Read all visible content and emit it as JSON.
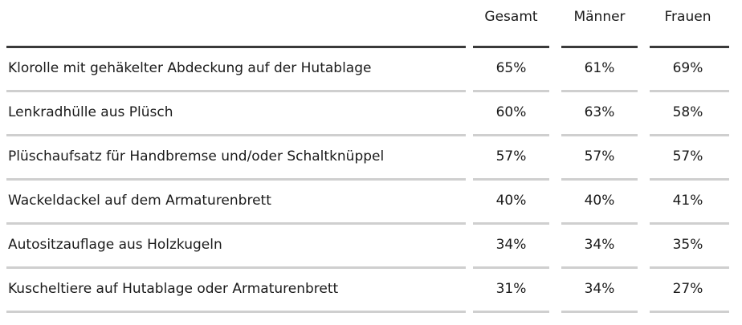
{
  "table": {
    "columns": [
      "Gesamt",
      "Männer",
      "Frauen"
    ],
    "rows": [
      {
        "label": "Klorolle mit gehäkelter Abdeckung auf der Hutablage",
        "values": [
          "65%",
          "61%",
          "69%"
        ]
      },
      {
        "label": "Lenkradhülle aus Plüsch",
        "values": [
          "60%",
          "63%",
          "58%"
        ]
      },
      {
        "label": "Plüschaufsatz für Handbremse und/oder Schaltknüppel",
        "values": [
          "57%",
          "57%",
          "57%"
        ]
      },
      {
        "label": "Wackeldackel auf dem Armaturenbrett",
        "values": [
          "40%",
          "40%",
          "41%"
        ]
      },
      {
        "label": "Autositzauflage aus Holzkugeln",
        "values": [
          "34%",
          "34%",
          "35%"
        ]
      },
      {
        "label": "Kuscheltiere auf Hutablage oder Armaturenbrett",
        "values": [
          "31%",
          "34%",
          "27%"
        ]
      }
    ]
  },
  "chart_data": {
    "type": "table",
    "columns": [
      "Gesamt",
      "Männer",
      "Frauen"
    ],
    "rows": [
      "Klorolle mit gehäkelter Abdeckung auf der Hutablage",
      "Lenkradhülle aus Plüsch",
      "Plüschaufsatz für Handbremse und/oder Schaltknüppel",
      "Wackeldackel auf dem Armaturenbrett",
      "Autositzauflage aus Holzkugeln",
      "Kuscheltiere auf Hutablage oder Armaturenbrett"
    ],
    "series": [
      {
        "name": "Gesamt",
        "values": [
          65,
          60,
          57,
          40,
          34,
          31
        ]
      },
      {
        "name": "Männer",
        "values": [
          61,
          63,
          57,
          40,
          34,
          34
        ]
      },
      {
        "name": "Frauen",
        "values": [
          69,
          58,
          57,
          41,
          35,
          27
        ]
      }
    ],
    "unit": "%"
  },
  "colors": {
    "header_rule": "#3a3a3a",
    "row_separator": "#cfcfcf",
    "text": "#1a1a1a"
  }
}
